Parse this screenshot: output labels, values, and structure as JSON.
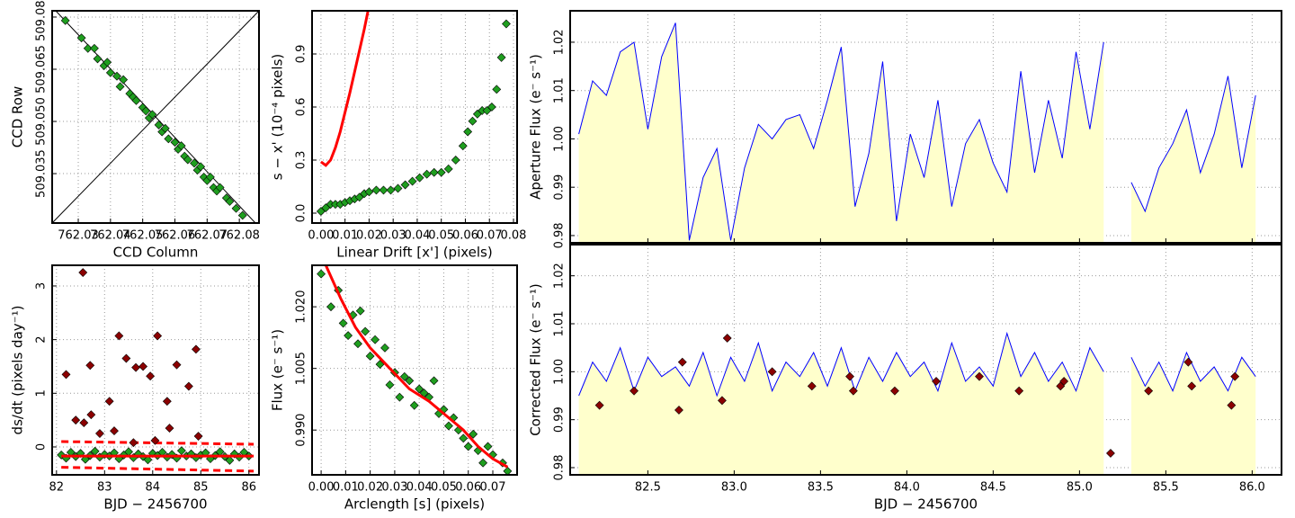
{
  "chart_data": [
    {
      "type": "scatter",
      "xlabel": "CCD Column",
      "ylabel": "CCD Row",
      "grid": true,
      "xlim": [
        762.0219,
        762.0861
      ],
      "ylim": [
        509.0208,
        509.0818
      ],
      "xticks": [
        762.03,
        762.04,
        762.05,
        762.06,
        762.07,
        762.08
      ],
      "yticks": [
        509.035,
        {
          "value": 509.05,
          "label": "509.050"
        },
        509.065,
        {
          "value": 509.08,
          "label": "509.080"
        }
      ],
      "series": [
        {
          "type": "scatter",
          "color": "#1f9e1f",
          "x": [
            762.026,
            762.031,
            762.033,
            762.035,
            762.036,
            762.038,
            762.039,
            762.04,
            762.042,
            762.043,
            762.044,
            762.046,
            762.047,
            762.048,
            762.05,
            762.051,
            762.052,
            762.053,
            762.055,
            762.056,
            762.057,
            762.058,
            762.06,
            762.061,
            762.062,
            762.063,
            762.064,
            762.066,
            762.067,
            762.068,
            762.069,
            762.07,
            762.071,
            762.072,
            762.073,
            762.074,
            762.076,
            762.077,
            762.079,
            762.081
          ],
          "values": [
            509.079,
            509.074,
            509.071,
            509.071,
            509.068,
            509.066,
            509.067,
            509.064,
            509.063,
            509.06,
            509.062,
            509.058,
            509.057,
            509.056,
            509.054,
            509.053,
            509.051,
            509.052,
            509.049,
            509.047,
            509.048,
            509.045,
            509.044,
            509.042,
            509.043,
            509.04,
            509.039,
            509.038,
            509.036,
            509.037,
            509.034,
            509.033,
            509.034,
            509.031,
            509.03,
            509.031,
            509.028,
            509.027,
            509.025,
            509.023
          ]
        }
      ]
    },
    {
      "type": "scatter",
      "xlabel": "Linear Drift [x'] (pixels)",
      "ylabel": "s − x' (10⁻⁴ pixels)",
      "grid": true,
      "xlim": [
        -0.0037,
        0.0815
      ],
      "ylim": [
        -0.056,
        1.144
      ],
      "xticks": [
        {
          "value": 0,
          "label": "0.00"
        },
        0.01,
        0.02,
        0.03,
        0.04,
        0.05,
        0.06,
        0.07,
        0.08
      ],
      "yticks": [
        {
          "value": 0,
          "label": "0.0"
        },
        0.3,
        0.6,
        0.9
      ],
      "series": [
        {
          "type": "scatter",
          "color": "#1f9e1f",
          "x": [
            0.0,
            0.002,
            0.004,
            0.006,
            0.008,
            0.01,
            0.012,
            0.014,
            0.016,
            0.018,
            0.02,
            0.023,
            0.026,
            0.029,
            0.032,
            0.035,
            0.038,
            0.041,
            0.044,
            0.047,
            0.05,
            0.053,
            0.056,
            0.059,
            0.061,
            0.063,
            0.065,
            0.067,
            0.069,
            0.071,
            0.073,
            0.075,
            0.077
          ],
          "values": [
            0.01,
            0.03,
            0.05,
            0.05,
            0.05,
            0.06,
            0.07,
            0.08,
            0.09,
            0.11,
            0.12,
            0.13,
            0.13,
            0.13,
            0.14,
            0.16,
            0.18,
            0.2,
            0.22,
            0.23,
            0.23,
            0.25,
            0.3,
            0.38,
            0.46,
            0.52,
            0.56,
            0.58,
            0.58,
            0.6,
            0.7,
            0.88,
            1.07
          ]
        },
        {
          "type": "line",
          "color": "#ff0000",
          "width": 3,
          "x": [
            0.0,
            0.002,
            0.004,
            0.006,
            0.008,
            0.01,
            0.012,
            0.014,
            0.016,
            0.018,
            0.0195
          ],
          "values": [
            0.29,
            0.27,
            0.3,
            0.37,
            0.46,
            0.57,
            0.68,
            0.8,
            0.92,
            1.04,
            1.14
          ]
        }
      ]
    },
    {
      "type": "area",
      "ylabel": "Aperture Flux (e⁻ s⁻¹)",
      "grid": true,
      "xticklabels": false,
      "xlim": [
        82.05,
        86.17
      ],
      "ylim": [
        0.9785,
        1.0265
      ],
      "xticks": [
        82.5,
        {
          "value": 83,
          "label": "83.0"
        },
        83.5,
        {
          "value": 84,
          "label": "84.0"
        },
        84.5,
        {
          "value": 85,
          "label": "85.0"
        },
        85.5,
        {
          "value": 86,
          "label": "86.0"
        }
      ],
      "yticks": [
        0.98,
        0.99,
        {
          "value": 1,
          "label": "1.00"
        },
        1.01,
        1.02
      ],
      "x": [
        82.1,
        82.18,
        82.26,
        82.34,
        82.42,
        82.5,
        82.58,
        82.66,
        82.74,
        82.82,
        82.9,
        82.98,
        83.06,
        83.14,
        83.22,
        83.3,
        83.38,
        83.46,
        83.54,
        83.62,
        83.7,
        83.78,
        83.86,
        83.94,
        84.02,
        84.1,
        84.18,
        84.26,
        84.34,
        84.42,
        84.5,
        84.58,
        84.66,
        84.74,
        84.82,
        84.9,
        84.98,
        85.06,
        85.14,
        85.22,
        85.3,
        85.38,
        85.46,
        85.54,
        85.62,
        85.7,
        85.78,
        85.86,
        85.94,
        86.02
      ],
      "series": [
        {
          "type": "area",
          "color": "#0000ff",
          "fill": "#ffffcc",
          "values": [
            1.001,
            1.012,
            1.009,
            1.018,
            1.02,
            1.002,
            1.017,
            1.024,
            0.979,
            0.992,
            0.998,
            0.979,
            0.994,
            1.003,
            1.0,
            1.004,
            1.005,
            0.998,
            1.008,
            1.019,
            0.986,
            0.997,
            1.016,
            0.983,
            1.001,
            0.992,
            1.008,
            0.986,
            0.999,
            1.004,
            0.995,
            0.989,
            1.014,
            0.993,
            1.008,
            0.996,
            1.018,
            1.002,
            1.02,
            null,
            0.991,
            0.985,
            0.994,
            0.999,
            1.006,
            0.993,
            1.001,
            1.013,
            0.994,
            1.009
          ]
        }
      ]
    },
    {
      "type": "scatter",
      "xlabel": "BJD − 2456700",
      "ylabel": "ds/dt (pixels day⁻¹)",
      "grid": true,
      "xlim": [
        81.91,
        86.21
      ],
      "ylim": [
        -0.52,
        3.385
      ],
      "xticks": [
        82,
        83,
        84,
        85,
        86
      ],
      "yticks": [
        0,
        1,
        2,
        3
      ],
      "series": [
        {
          "type": "line",
          "color": "#ff0000",
          "width": 3,
          "dash": true,
          "x": [
            82.1,
            86.1
          ],
          "values": [
            0.1,
            0.05
          ]
        },
        {
          "type": "line",
          "color": "#ff0000",
          "width": 3,
          "dash": true,
          "x": [
            82.1,
            86.1
          ],
          "values": [
            -0.38,
            -0.45
          ]
        },
        {
          "type": "scatter",
          "color": "#1f9e1f",
          "x": [
            82.1,
            82.2,
            82.3,
            82.4,
            82.5,
            82.6,
            82.7,
            82.8,
            82.9,
            83.0,
            83.1,
            83.2,
            83.3,
            83.4,
            83.5,
            83.6,
            83.7,
            83.8,
            83.9,
            84.0,
            84.1,
            84.2,
            84.3,
            84.4,
            84.5,
            84.6,
            84.7,
            84.8,
            84.9,
            85.0,
            85.1,
            85.2,
            85.3,
            85.4,
            85.5,
            85.6,
            85.7,
            85.8,
            85.9,
            86.0
          ],
          "values": [
            -0.15,
            -0.21,
            -0.1,
            -0.18,
            -0.12,
            -0.23,
            -0.16,
            -0.08,
            -0.19,
            -0.14,
            -0.17,
            -0.11,
            -0.22,
            -0.15,
            -0.09,
            -0.2,
            -0.13,
            -0.18,
            -0.24,
            -0.12,
            -0.16,
            -0.1,
            -0.19,
            -0.14,
            -0.21,
            -0.07,
            -0.17,
            -0.13,
            -0.2,
            -0.15,
            -0.11,
            -0.22,
            -0.16,
            -0.09,
            -0.18,
            -0.25,
            -0.13,
            -0.19,
            -0.1,
            -0.17
          ]
        },
        {
          "type": "line",
          "color": "#ff0000",
          "width": 3,
          "x": [
            82.1,
            86.1
          ],
          "values": [
            -0.17,
            -0.17
          ]
        },
        {
          "type": "scatter",
          "color": "#8b0000",
          "x": [
            82.2,
            82.4,
            82.55,
            82.57,
            82.7,
            82.72,
            82.9,
            83.1,
            83.2,
            83.3,
            83.45,
            83.6,
            83.65,
            83.8,
            83.95,
            84.05,
            84.1,
            84.3,
            84.35,
            84.5,
            84.75,
            84.9,
            84.95
          ],
          "values": [
            1.35,
            0.5,
            3.25,
            0.45,
            1.52,
            0.6,
            0.25,
            0.85,
            0.3,
            2.07,
            1.65,
            0.08,
            1.48,
            1.5,
            1.32,
            0.12,
            2.07,
            0.85,
            0.35,
            1.53,
            1.13,
            1.82,
            0.2
          ]
        }
      ]
    },
    {
      "type": "scatter",
      "xlabel": "Arclength [s] (pixels)",
      "ylabel": "Flux (e⁻ s⁻¹)",
      "grid": true,
      "xlim": [
        -0.0037,
        0.0799
      ],
      "ylim": [
        0.9791,
        1.0301
      ],
      "xticks": [
        {
          "value": 0,
          "label": "0.00"
        },
        0.01,
        0.02,
        0.03,
        0.04,
        0.05,
        0.06,
        0.07
      ],
      "yticks": [
        {
          "value": 0.99,
          "label": "0.990"
        },
        1.005,
        {
          "value": 1.02,
          "label": "1.020"
        }
      ],
      "series": [
        {
          "type": "scatter",
          "color": "#1f9e1f",
          "x": [
            0.0,
            0.004,
            0.007,
            0.009,
            0.011,
            0.013,
            0.015,
            0.016,
            0.018,
            0.02,
            0.022,
            0.024,
            0.026,
            0.028,
            0.03,
            0.032,
            0.034,
            0.036,
            0.038,
            0.04,
            0.042,
            0.044,
            0.046,
            0.048,
            0.05,
            0.052,
            0.054,
            0.056,
            0.058,
            0.06,
            0.062,
            0.064,
            0.066,
            0.068,
            0.07,
            0.074,
            0.076
          ],
          "values": [
            1.028,
            1.02,
            1.024,
            1.016,
            1.013,
            1.018,
            1.011,
            1.019,
            1.014,
            1.008,
            1.012,
            1.006,
            1.01,
            1.001,
            1.004,
            0.998,
            1.003,
            1.002,
            0.996,
            1.0,
            0.999,
            0.998,
            1.002,
            0.994,
            0.995,
            0.991,
            0.993,
            0.99,
            0.988,
            0.986,
            0.989,
            0.985,
            0.982,
            0.986,
            0.984,
            0.982,
            0.98
          ]
        },
        {
          "type": "line",
          "color": "#ff0000",
          "width": 3,
          "x": [
            0.002,
            0.008,
            0.014,
            0.02,
            0.028,
            0.036,
            0.044,
            0.052,
            0.058,
            0.064,
            0.07,
            0.076
          ],
          "values": [
            1.03,
            1.022,
            1.015,
            1.01,
            1.005,
            1.0,
            0.997,
            0.993,
            0.99,
            0.986,
            0.983,
            0.981
          ]
        }
      ]
    },
    {
      "type": "area",
      "xlabel": "BJD − 2456700",
      "ylabel": "Corrected Flux (e⁻ s⁻¹)",
      "grid": true,
      "xlim": [
        82.05,
        86.17
      ],
      "ylim": [
        0.9785,
        1.0265
      ],
      "xticks": [
        82.5,
        {
          "value": 83,
          "label": "83.0"
        },
        83.5,
        {
          "value": 84,
          "label": "84.0"
        },
        84.5,
        {
          "value": 85,
          "label": "85.0"
        },
        85.5,
        {
          "value": 86,
          "label": "86.0"
        }
      ],
      "yticks": [
        0.98,
        0.99,
        {
          "value": 1,
          "label": "1.00"
        },
        1.01,
        1.02
      ],
      "x": [
        82.1,
        82.18,
        82.26,
        82.34,
        82.42,
        82.5,
        82.58,
        82.66,
        82.74,
        82.82,
        82.9,
        82.98,
        83.06,
        83.14,
        83.22,
        83.3,
        83.38,
        83.46,
        83.54,
        83.62,
        83.7,
        83.78,
        83.86,
        83.94,
        84.02,
        84.1,
        84.18,
        84.26,
        84.34,
        84.42,
        84.5,
        84.58,
        84.66,
        84.74,
        84.82,
        84.9,
        84.98,
        85.06,
        85.14,
        85.22,
        85.3,
        85.38,
        85.46,
        85.54,
        85.62,
        85.7,
        85.78,
        85.86,
        85.94,
        86.02
      ],
      "series": [
        {
          "type": "area",
          "color": "#0000ff",
          "fill": "#ffffcc",
          "values": [
            0.995,
            1.002,
            0.998,
            1.005,
            0.996,
            1.003,
            0.999,
            1.001,
            0.997,
            1.004,
            0.995,
            1.003,
            0.998,
            1.006,
            0.996,
            1.002,
            0.999,
            1.004,
            0.997,
            1.005,
            0.996,
            1.003,
            0.998,
            1.004,
            0.999,
            1.002,
            0.996,
            1.006,
            0.998,
            1.001,
            0.997,
            1.008,
            0.999,
            1.004,
            0.998,
            1.002,
            0.996,
            1.005,
            1.0,
            null,
            1.003,
            0.997,
            1.002,
            0.996,
            1.004,
            0.998,
            1.001,
            0.996,
            1.003,
            0.999
          ]
        },
        {
          "type": "scatter",
          "color": "#8b0000",
          "x": [
            82.22,
            82.42,
            82.68,
            82.7,
            82.93,
            82.96,
            83.22,
            83.45,
            83.67,
            83.69,
            83.93,
            84.17,
            84.42,
            84.65,
            84.89,
            84.91,
            85.18,
            85.4,
            85.63,
            85.65,
            85.88,
            85.9
          ],
          "values": [
            0.993,
            0.996,
            0.992,
            1.002,
            0.994,
            1.007,
            1.0,
            0.997,
            0.999,
            0.996,
            0.996,
            0.998,
            0.999,
            0.996,
            0.997,
            0.998,
            0.983,
            0.996,
            1.002,
            0.997,
            0.993,
            0.999
          ]
        }
      ]
    }
  ]
}
